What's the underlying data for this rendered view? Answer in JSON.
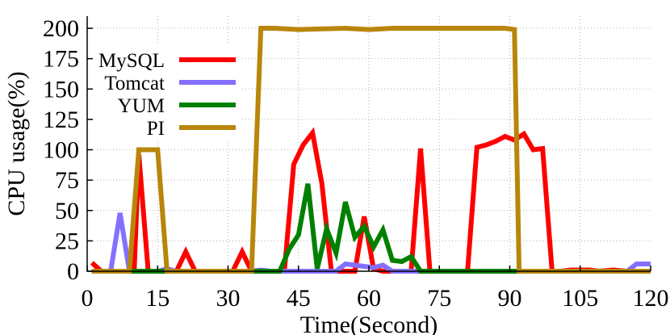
{
  "chart_data": {
    "type": "line",
    "title": "",
    "xlabel": "Time(Second)",
    "ylabel": "CPU usage(%)",
    "xlim": [
      0,
      120
    ],
    "ylim": [
      0,
      210
    ],
    "xticks": [
      0,
      15,
      30,
      45,
      60,
      75,
      90,
      105,
      120
    ],
    "yticks": [
      0,
      25,
      50,
      75,
      100,
      125,
      150,
      175,
      200
    ],
    "grid": true,
    "legend_position": "top-left",
    "series": [
      {
        "name": "MySQL",
        "color": "#ff0000",
        "points": [
          [
            1,
            7
          ],
          [
            3,
            0
          ],
          [
            10,
            0
          ],
          [
            11,
            96
          ],
          [
            13,
            0
          ],
          [
            15,
            0
          ],
          [
            17,
            0
          ],
          [
            19,
            0
          ],
          [
            21,
            16
          ],
          [
            23,
            0
          ],
          [
            31,
            0
          ],
          [
            33,
            16
          ],
          [
            35,
            0
          ],
          [
            42,
            0
          ],
          [
            44,
            88
          ],
          [
            46,
            104
          ],
          [
            48,
            114
          ],
          [
            50,
            72
          ],
          [
            52,
            0
          ],
          [
            54,
            0
          ],
          [
            57,
            0
          ],
          [
            59,
            45
          ],
          [
            61,
            2
          ],
          [
            63,
            0
          ],
          [
            65,
            0
          ],
          [
            69,
            0
          ],
          [
            71,
            101
          ],
          [
            73,
            0
          ],
          [
            75,
            0
          ],
          [
            81,
            0
          ],
          [
            83,
            102
          ],
          [
            85,
            104
          ],
          [
            87,
            107
          ],
          [
            89,
            111
          ],
          [
            91,
            108
          ],
          [
            93,
            113
          ],
          [
            95,
            100
          ],
          [
            97,
            101
          ],
          [
            99,
            0
          ],
          [
            101,
            0
          ],
          [
            103,
            1
          ],
          [
            105,
            1
          ],
          [
            107,
            1
          ],
          [
            109,
            0
          ],
          [
            112,
            1
          ],
          [
            115,
            0
          ],
          [
            120,
            0
          ]
        ]
      },
      {
        "name": "Tomcat",
        "color": "#8470ff",
        "points": [
          [
            1,
            0
          ],
          [
            5,
            0
          ],
          [
            7,
            48
          ],
          [
            9,
            0
          ],
          [
            13,
            0
          ],
          [
            15,
            0
          ],
          [
            17,
            2
          ],
          [
            19,
            0
          ],
          [
            35,
            0
          ],
          [
            37,
            1
          ],
          [
            39,
            0
          ],
          [
            43,
            0
          ],
          [
            45,
            0
          ],
          [
            50,
            0
          ],
          [
            53,
            0
          ],
          [
            55,
            6
          ],
          [
            57,
            5
          ],
          [
            59,
            4
          ],
          [
            61,
            3
          ],
          [
            63,
            5
          ],
          [
            65,
            0
          ],
          [
            115,
            0
          ],
          [
            117,
            6
          ],
          [
            120,
            6
          ]
        ]
      },
      {
        "name": "YUM",
        "color": "#008000",
        "points": [
          [
            1,
            0
          ],
          [
            35,
            0
          ],
          [
            37,
            0
          ],
          [
            41,
            0
          ],
          [
            43,
            18
          ],
          [
            45,
            30
          ],
          [
            47,
            72
          ],
          [
            49,
            2
          ],
          [
            51,
            35
          ],
          [
            53,
            15
          ],
          [
            55,
            57
          ],
          [
            57,
            28
          ],
          [
            59,
            37
          ],
          [
            61,
            20
          ],
          [
            63,
            34
          ],
          [
            65,
            9
          ],
          [
            67,
            8
          ],
          [
            69,
            12
          ],
          [
            71,
            0
          ],
          [
            75,
            0
          ],
          [
            90,
            0
          ],
          [
            120,
            0
          ]
        ]
      },
      {
        "name": "PI",
        "color": "#b8860b",
        "points": [
          [
            1,
            0
          ],
          [
            9,
            0
          ],
          [
            11,
            100
          ],
          [
            15,
            100
          ],
          [
            17,
            0
          ],
          [
            35,
            0
          ],
          [
            37,
            200
          ],
          [
            40,
            200
          ],
          [
            45,
            199
          ],
          [
            55,
            200
          ],
          [
            60,
            199
          ],
          [
            65,
            200
          ],
          [
            80,
            200
          ],
          [
            89,
            200
          ],
          [
            91,
            199
          ],
          [
            92,
            0
          ],
          [
            96,
            0
          ],
          [
            120,
            0
          ]
        ]
      }
    ]
  }
}
